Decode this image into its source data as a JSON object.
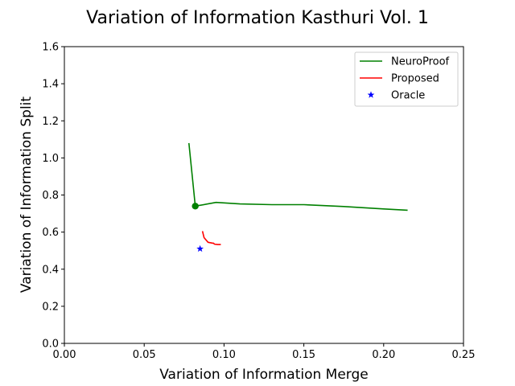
{
  "chart_data": {
    "type": "line",
    "title": "Variation of Information Kasthuri Vol. 1",
    "xlabel": "Variation of Information Merge",
    "ylabel": "Variation of Information Split",
    "xlim": [
      0.0,
      0.25
    ],
    "ylim": [
      0.0,
      1.6
    ],
    "xticks": [
      "0.00",
      "0.05",
      "0.10",
      "0.15",
      "0.20",
      "0.25"
    ],
    "yticks": [
      "0.0",
      "0.2",
      "0.4",
      "0.6",
      "0.8",
      "1.0",
      "1.2",
      "1.4",
      "1.6"
    ],
    "grid": false,
    "legend_position": "top-right",
    "series": [
      {
        "name": "NeuroProof",
        "color": "#008000",
        "marker": "line",
        "x": [
          0.078,
          0.082,
          0.095,
          0.11,
          0.13,
          0.15,
          0.175,
          0.2,
          0.215
        ],
        "y": [
          1.08,
          0.74,
          0.76,
          0.752,
          0.748,
          0.748,
          0.738,
          0.725,
          0.718
        ],
        "highlight_point": {
          "x": 0.082,
          "y": 0.74
        }
      },
      {
        "name": "Proposed",
        "color": "#ff0000",
        "marker": "line",
        "x": [
          0.0865,
          0.0875,
          0.09,
          0.093,
          0.0935,
          0.094,
          0.096,
          0.098
        ],
        "y": [
          0.605,
          0.57,
          0.545,
          0.54,
          0.54,
          0.535,
          0.533,
          0.533
        ]
      },
      {
        "name": "Oracle",
        "color": "#0000ff",
        "marker": "star",
        "x": [
          0.085
        ],
        "y": [
          0.51
        ]
      }
    ]
  }
}
